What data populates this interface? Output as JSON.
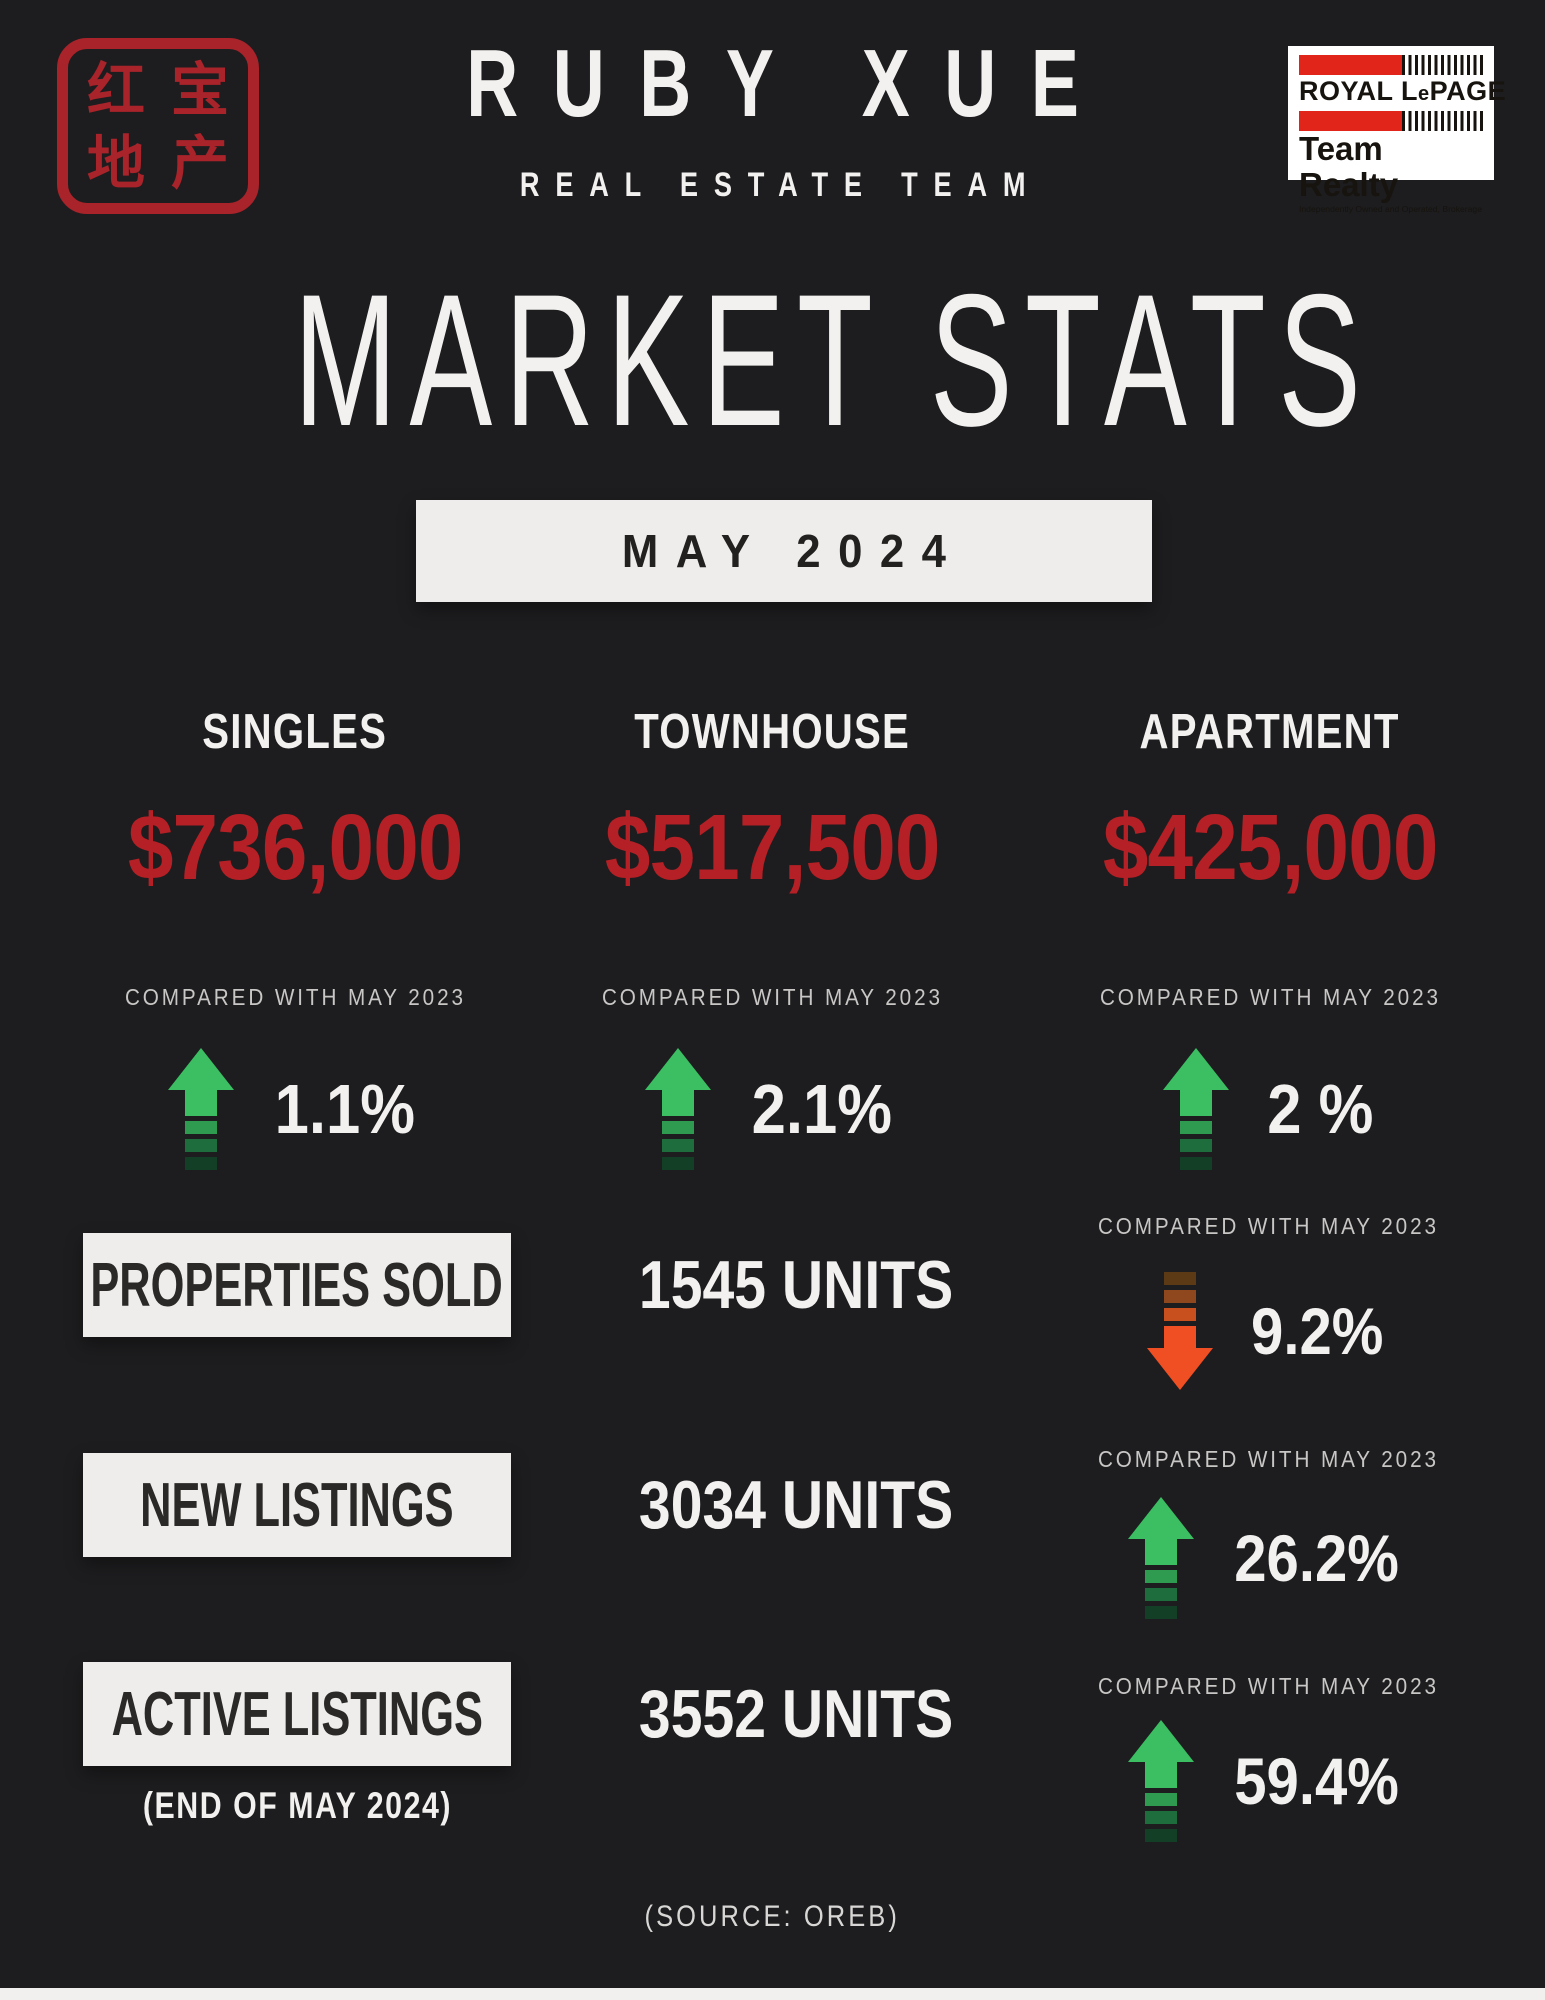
{
  "colors": {
    "bg": "#1d1d1f",
    "ink": "#f2f1ef",
    "muted": "#c9c7c5",
    "red": "#b42025",
    "seal-red": "#a8232a",
    "lepage-red": "#e1251b",
    "panel": "#efedeb",
    "panel-ink": "#2b2927",
    "green": "#3bbf62",
    "orange": "#f04f23"
  },
  "header": {
    "seal_chars": [
      "红",
      "宝",
      "地",
      "产"
    ],
    "team_name": "RUBY XUE",
    "team_subtitle": "REAL ESTATE TEAM",
    "brokerage": {
      "name_parts": [
        "ROYAL L",
        "e",
        "PAGE"
      ],
      "team": "Team Realty",
      "tagline": "Independently Owned and Operated, Brokerage"
    }
  },
  "title": "MARKET STATS",
  "period": "MAY 2024",
  "price_columns": [
    {
      "label": "SINGLES",
      "price": "$736,000",
      "compare_label": "COMPARED WITH MAY 2023",
      "change": "1.1%",
      "direction": "up"
    },
    {
      "label": "TOWNHOUSE",
      "price": "$517,500",
      "compare_label": "COMPARED WITH MAY 2023",
      "change": "2.1%",
      "direction": "up"
    },
    {
      "label": "APARTMENT",
      "price": "$425,000",
      "compare_label": "COMPARED WITH MAY 2023",
      "change": "2 %",
      "direction": "up"
    }
  ],
  "stats_rows": [
    {
      "label": "PROPERTIES SOLD",
      "value": "1545 UNITS",
      "compare_label": "COMPARED WITH MAY 2023",
      "change": "9.2%",
      "direction": "down"
    },
    {
      "label": "NEW LISTINGS",
      "value": "3034 UNITS",
      "compare_label": "COMPARED WITH MAY 2023",
      "change": "26.2%",
      "direction": "up"
    },
    {
      "label": "ACTIVE LISTINGS",
      "value": "3552 UNITS",
      "compare_label": "COMPARED WITH MAY 2023",
      "change": "59.4%",
      "direction": "up",
      "note": "(END OF MAY 2024)"
    }
  ],
  "source": "(SOURCE: OREB)"
}
